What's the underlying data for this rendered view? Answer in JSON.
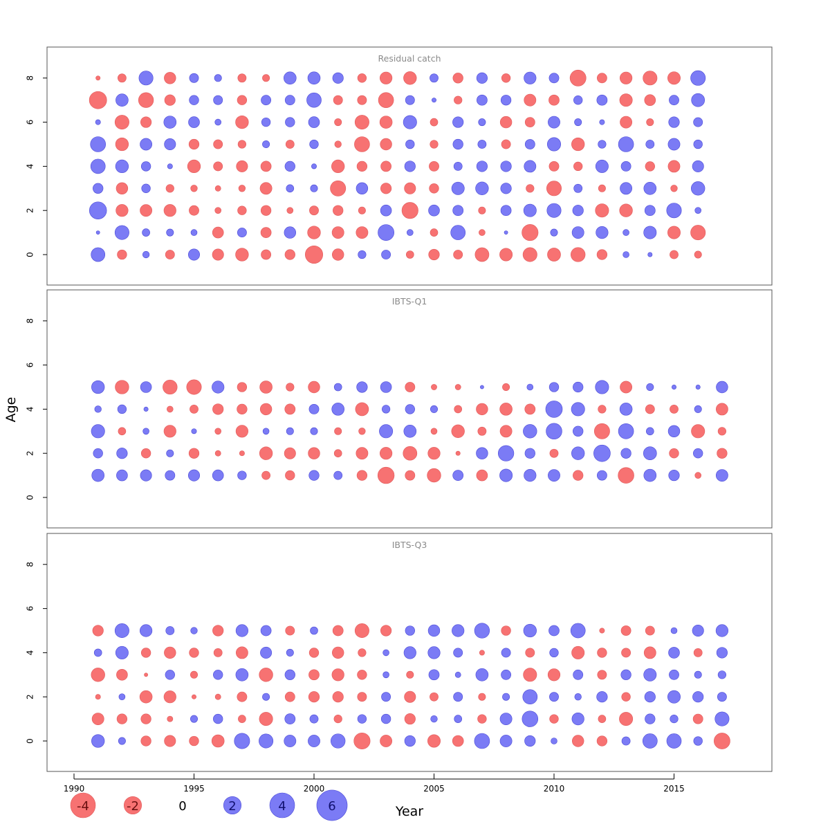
{
  "chart_data": {
    "type": "scatter",
    "encoding": "bubble",
    "xlabel": "Year",
    "ylabel": "Age",
    "xlim": [
      1990,
      2018
    ],
    "ylim": [
      -1,
      9
    ],
    "xticks": [
      1990,
      1995,
      2000,
      2005,
      2010,
      2015
    ],
    "yticks": [
      0,
      2,
      4,
      6,
      8
    ],
    "colors": {
      "positive": "#7b7bf5",
      "negative": "#f77272",
      "positive_edge": "#4a4ad6",
      "negative_edge": "#e05a5a",
      "panel_title": "#8a8a8a"
    },
    "legend": {
      "placement": "bottom-left",
      "entries": [
        {
          "label": "-4",
          "value": -4
        },
        {
          "label": "-2",
          "value": -2
        },
        {
          "label": "0",
          "value": 0
        },
        {
          "label": "2",
          "value": 2
        },
        {
          "label": "4",
          "value": 4
        },
        {
          "label": "6",
          "value": 6
        }
      ]
    },
    "panels": [
      {
        "title": "Residual catch",
        "years": [
          1991,
          1992,
          1993,
          1994,
          1995,
          1996,
          1997,
          1998,
          1999,
          2000,
          2001,
          2002,
          2003,
          2004,
          2005,
          2006,
          2007,
          2008,
          2009,
          2010,
          2011,
          2012,
          2013,
          2014,
          2015,
          2016
        ],
        "ages": [
          0,
          1,
          2,
          3,
          4,
          5,
          6,
          7,
          8
        ],
        "residuals": [
          [
            3.0,
            -1.4,
            0.7,
            -1.3,
            2.0,
            -2.0,
            -2.6,
            -1.5,
            -1.6,
            -4.8,
            -2.1,
            1.0,
            1.3,
            -0.9,
            -1.8,
            -1.3,
            -3.0,
            -2.5,
            -3.1,
            -2.7,
            -3.2,
            -1.6,
            0.6,
            0.3,
            -1.1,
            -0.8
          ],
          [
            0.2,
            3.1,
            0.9,
            0.8,
            0.6,
            -1.9,
            1.3,
            -1.7,
            2.1,
            -2.6,
            -2.2,
            -2.2,
            4.0,
            0.6,
            -0.9,
            3.3,
            -0.6,
            0.2,
            -4.1,
            0.8,
            2.2,
            2.3,
            0.6,
            2.5,
            -2.5,
            -3.4
          ],
          [
            4.6,
            -2.3,
            -2.2,
            -2.3,
            -1.5,
            -0.6,
            -1.2,
            -1.6,
            -0.6,
            -1.3,
            -1.6,
            -0.8,
            1.9,
            -4.1,
            1.9,
            1.7,
            -0.8,
            1.7,
            2.5,
            3.1,
            1.8,
            -2.8,
            -2.6,
            1.7,
            3.4,
            0.6
          ],
          [
            1.6,
            -2.1,
            1.2,
            -1.0,
            -0.7,
            -0.5,
            -0.7,
            -2.2,
            0.9,
            0.8,
            -3.7,
            2.1,
            -1.8,
            -2.0,
            -1.4,
            2.5,
            2.6,
            1.8,
            -1.0,
            -3.4,
            1.1,
            -0.8,
            2.2,
            2.4,
            -0.7,
            2.9
          ],
          [
            3.3,
            2.6,
            1.4,
            0.4,
            -2.6,
            -1.3,
            -2.0,
            -1.7,
            1.6,
            0.4,
            -2.6,
            -1.6,
            -1.7,
            1.8,
            -1.5,
            1.1,
            1.8,
            1.8,
            2.2,
            -1.5,
            -1.2,
            2.5,
            1.5,
            -1.4,
            -2.2,
            2.0
          ],
          [
            3.6,
            -2.6,
            2.2,
            2.0,
            -1.6,
            -1.3,
            -1.0,
            0.8,
            -1.1,
            1.2,
            -0.7,
            -3.6,
            -2.1,
            1.2,
            -1.0,
            1.6,
            1.1,
            -1.3,
            1.5,
            2.8,
            -2.6,
            1.0,
            3.6,
            1.1,
            2.2,
            1.2
          ],
          [
            0.4,
            -3.1,
            -1.8,
            2.4,
            1.9,
            0.6,
            -2.6,
            1.2,
            1.4,
            1.9,
            -0.8,
            -3.1,
            -2.4,
            2.8,
            -0.9,
            1.8,
            0.8,
            -2.1,
            -1.5,
            2.2,
            0.8,
            0.4,
            -2.2,
            -0.8,
            1.8,
            1.3
          ],
          [
            -4.7,
            2.4,
            -3.5,
            -1.8,
            1.4,
            1.3,
            -1.4,
            1.5,
            1.5,
            3.3,
            -1.3,
            -1.3,
            -3.6,
            1.3,
            0.3,
            -1.0,
            1.7,
            1.6,
            -2.2,
            -1.7,
            1.2,
            1.7,
            -2.5,
            -1.9,
            1.5,
            2.7
          ],
          [
            -0.3,
            -1.1,
            3.1,
            -2.1,
            1.3,
            0.8,
            -1.1,
            -0.8,
            2.4,
            2.4,
            1.8,
            -1.2,
            -2.3,
            -2.6,
            1.1,
            -1.6,
            1.8,
            -1.2,
            2.3,
            1.5,
            -4.0,
            -1.5,
            -2.3,
            -3.1,
            -2.5,
            3.4
          ]
        ]
      },
      {
        "title": "IBTS-Q1",
        "years": [
          1991,
          1992,
          1993,
          1994,
          1995,
          1996,
          1997,
          1998,
          1999,
          2000,
          2001,
          2002,
          2003,
          2004,
          2005,
          2006,
          2007,
          2008,
          2009,
          2010,
          2011,
          2012,
          2013,
          2014,
          2015,
          2016,
          2017
        ],
        "ages": [
          1,
          2,
          3,
          4,
          5
        ],
        "residuals": [
          [
            2.4,
            1.9,
            2.0,
            1.5,
            2.0,
            1.9,
            1.2,
            -1.1,
            -1.4,
            1.6,
            1.1,
            -1.6,
            -4.2,
            -1.5,
            -2.9,
            1.7,
            -1.9,
            2.5,
            2.3,
            2.2,
            -1.6,
            1.5,
            -3.9,
            2.4,
            1.8,
            -0.6,
            2.2
          ],
          [
            1.4,
            1.8,
            -1.4,
            0.8,
            -1.6,
            -0.5,
            -0.4,
            -2.6,
            -2.0,
            -2.1,
            -0.9,
            -2.2,
            -2.3,
            -3.0,
            -2.3,
            -0.3,
            2.1,
            3.8,
            1.6,
            -1.1,
            2.6,
            4.3,
            1.6,
            2.7,
            -1.4,
            1.4,
            -1.6
          ],
          [
            2.8,
            -0.9,
            0.6,
            -2.3,
            0.4,
            -0.6,
            -2.3,
            0.6,
            0.8,
            0.8,
            -0.8,
            -0.7,
            2.8,
            2.4,
            -0.6,
            -2.6,
            -1.1,
            -2.2,
            2.9,
            3.9,
            1.6,
            -3.7,
            3.6,
            0.9,
            2.1,
            -2.8,
            -1.0
          ],
          [
            0.7,
            1.2,
            0.3,
            -0.6,
            -1.1,
            -1.8,
            -1.6,
            -2.1,
            -1.7,
            1.5,
            2.4,
            -2.7,
            1.0,
            1.4,
            0.8,
            -0.9,
            -2.1,
            -2.4,
            -1.7,
            4.3,
            2.8,
            -1.0,
            2.4,
            -1.3,
            -1.1,
            0.8,
            -2.2
          ],
          [
            2.6,
            -2.9,
            1.9,
            -3.2,
            -3.4,
            2.3,
            -1.4,
            -2.4,
            -1.0,
            -2.1,
            0.9,
            1.8,
            1.9,
            -1.5,
            -0.5,
            -0.5,
            0.2,
            -0.8,
            0.6,
            1.4,
            1.6,
            2.8,
            -2.2,
            0.8,
            0.3,
            0.3,
            2.1
          ]
        ]
      },
      {
        "title": "IBTS-Q3",
        "years": [
          1991,
          1992,
          1993,
          1994,
          1995,
          1996,
          1997,
          1998,
          1999,
          2000,
          2001,
          2002,
          2003,
          2004,
          2005,
          2006,
          2007,
          2008,
          2009,
          2010,
          2011,
          2012,
          2013,
          2014,
          2015,
          2016,
          2017
        ],
        "ages": [
          0,
          1,
          2,
          3,
          4,
          5
        ],
        "residuals": [
          [
            2.6,
            0.8,
            -1.6,
            -2.0,
            -1.4,
            -2.4,
            3.7,
            3.1,
            2.2,
            2.2,
            3.2,
            -4.1,
            -2.2,
            1.8,
            -2.5,
            -1.9,
            3.6,
            2.2,
            1.8,
            0.6,
            -2.1,
            -1.6,
            1.1,
            3.3,
            3.3,
            1.2,
            -4.0
          ],
          [
            -2.2,
            -1.6,
            -1.6,
            -0.5,
            0.8,
            1.4,
            -0.9,
            -2.8,
            1.7,
            1.1,
            -1.0,
            1.2,
            1.4,
            -1.8,
            0.7,
            0.9,
            -1.2,
            2.2,
            3.9,
            -1.2,
            2.3,
            -0.9,
            -2.8,
            1.6,
            1.0,
            -1.5,
            3.1
          ],
          [
            -0.4,
            0.6,
            -2.4,
            -2.3,
            -0.3,
            -0.5,
            -1.5,
            0.8,
            -1.5,
            -1.8,
            -1.8,
            -1.3,
            1.3,
            -2.0,
            -1.1,
            1.3,
            -0.8,
            0.8,
            3.3,
            1.3,
            0.7,
            1.8,
            -1.2,
            1.8,
            2.5,
            1.8,
            1.3
          ],
          [
            -2.9,
            -1.9,
            -0.2,
            1.4,
            -0.8,
            1.4,
            2.4,
            -2.9,
            1.6,
            -1.7,
            -2.3,
            -1.4,
            0.6,
            -0.8,
            1.7,
            0.5,
            2.4,
            1.5,
            -2.8,
            -2.3,
            1.5,
            -1.3,
            1.6,
            2.5,
            1.5,
            0.8,
            1.0
          ],
          [
            0.9,
            2.5,
            -1.4,
            -2.1,
            -1.4,
            -1.1,
            -2.2,
            2.0,
            0.8,
            -1.4,
            -2.1,
            -1.0,
            0.6,
            2.3,
            2.3,
            1.3,
            -0.4,
            1.3,
            -1.3,
            1.2,
            -2.5,
            -1.4,
            -1.3,
            -2.2,
            1.9,
            -1.1,
            1.8
          ],
          [
            -1.8,
            3.1,
            2.3,
            1.1,
            0.7,
            -1.8,
            2.3,
            1.7,
            -1.3,
            0.9,
            -1.7,
            -3.1,
            -1.8,
            1.4,
            2.1,
            2.3,
            3.5,
            -1.4,
            2.6,
            1.7,
            3.3,
            -0.4,
            -1.5,
            -1.3,
            0.6,
            2.0,
            2.3
          ]
        ]
      }
    ]
  }
}
